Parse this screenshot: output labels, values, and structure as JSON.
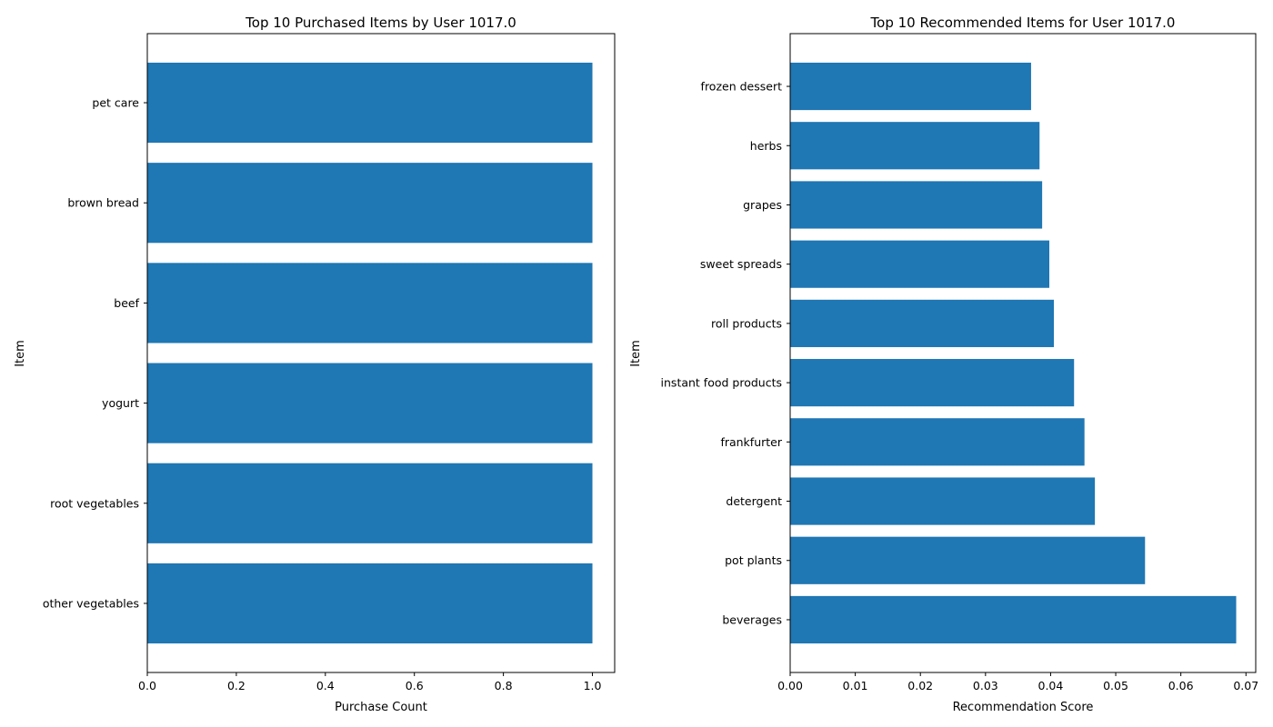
{
  "chart_data": [
    {
      "type": "bar",
      "orientation": "horizontal",
      "title": "Top 10 Purchased Items by User 1017.0",
      "xlabel": "Purchase Count",
      "ylabel": "Item",
      "categories": [
        "other vegetables",
        "root vegetables",
        "yogurt",
        "beef",
        "brown bread",
        "pet care"
      ],
      "values": [
        1,
        1,
        1,
        1,
        1,
        1
      ],
      "xlim": [
        0,
        1.05
      ],
      "xticks": [
        0.0,
        0.2,
        0.4,
        0.6,
        0.8,
        1.0
      ],
      "xtick_labels": [
        "0.0",
        "0.2",
        "0.4",
        "0.6",
        "0.8",
        "1.0"
      ],
      "bar_color": "#1f77b4",
      "grid": false
    },
    {
      "type": "bar",
      "orientation": "horizontal",
      "title": "Top 10 Recommended Items for User 1017.0",
      "xlabel": "Recommendation Score",
      "ylabel": "Item",
      "categories": [
        "beverages",
        "pot plants",
        "detergent",
        "frankfurter",
        "instant food products",
        "roll products",
        "sweet spreads",
        "grapes",
        "herbs",
        "frozen dessert"
      ],
      "values": [
        0.0685,
        0.0545,
        0.0468,
        0.0452,
        0.0436,
        0.0405,
        0.0398,
        0.0387,
        0.0383,
        0.037
      ],
      "xlim": [
        0,
        0.0715
      ],
      "xticks": [
        0,
        0.01,
        0.02,
        0.03,
        0.04,
        0.05,
        0.06,
        0.07
      ],
      "xtick_labels": [
        "0.00",
        "0.01",
        "0.02",
        "0.03",
        "0.04",
        "0.05",
        "0.06",
        "0.07"
      ],
      "bar_color": "#1f77b4",
      "grid": false
    }
  ]
}
